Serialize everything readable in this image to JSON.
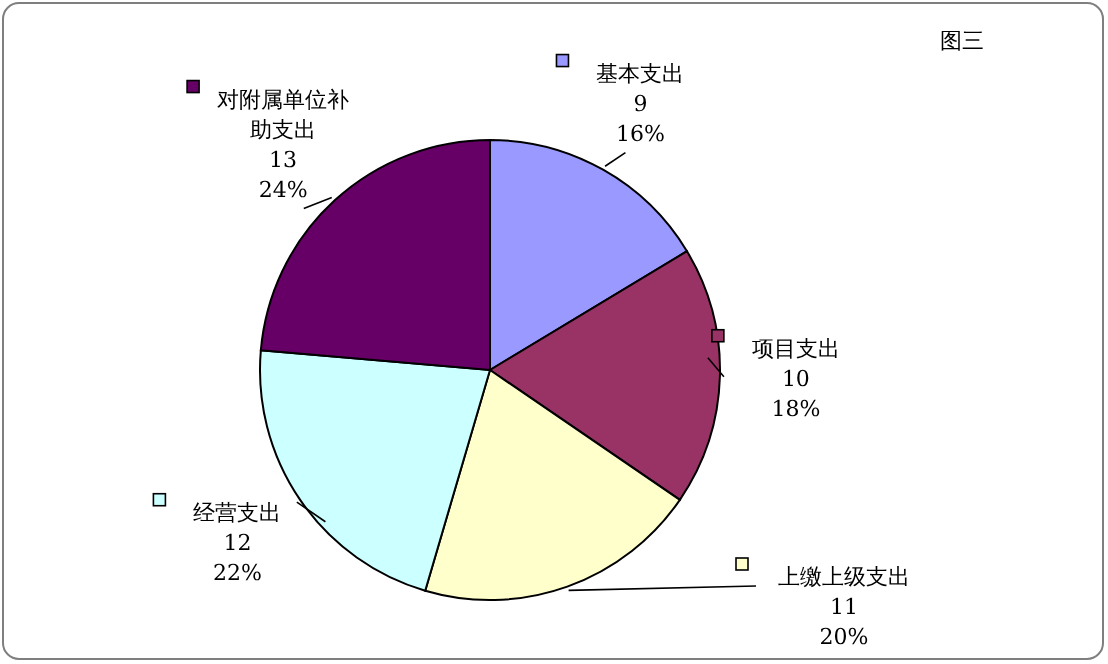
{
  "chart_data": {
    "type": "pie",
    "title": "图三",
    "categories": [
      "基本支出",
      "项目支出",
      "上缴上级支出",
      "经营支出",
      "对附属单位补助支出"
    ],
    "values": [
      9,
      10,
      11,
      12,
      13
    ],
    "colors": [
      "#9999ff",
      "#993366",
      "#ffffcc",
      "#ccffff",
      "#660066"
    ],
    "value_labels": [
      "9\n16%",
      "10\n18%",
      "11\n20%",
      "12\n22%",
      "13\n24%"
    ],
    "legend": true
  }
}
